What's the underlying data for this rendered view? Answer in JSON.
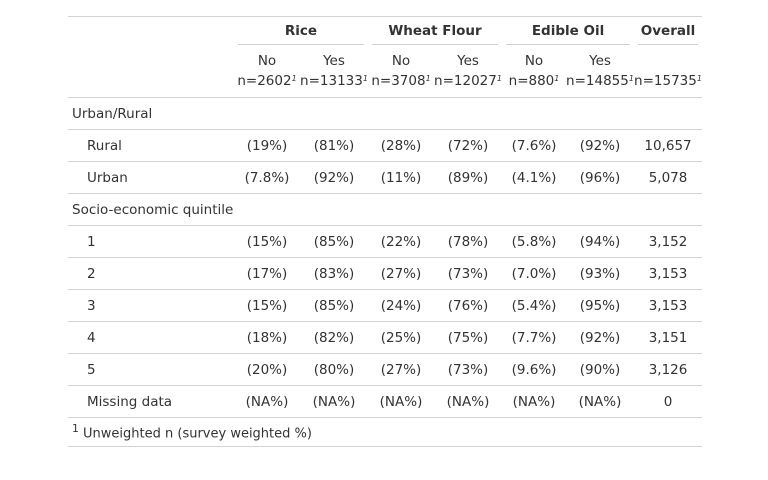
{
  "spanners": {
    "rice": "Rice",
    "wheat": "Wheat Flour",
    "oil": "Edible Oil",
    "overall": "Overall"
  },
  "columns": [
    {
      "label": "No",
      "n": "n=2602"
    },
    {
      "label": "Yes",
      "n": "n=13133"
    },
    {
      "label": "No",
      "n": "n=3708"
    },
    {
      "label": "Yes",
      "n": "n=12027"
    },
    {
      "label": "No",
      "n": "n=880"
    },
    {
      "label": "Yes",
      "n": "n=14855"
    },
    {
      "label": "",
      "n": "n=15735"
    }
  ],
  "footnote_mark": "1",
  "groups": [
    {
      "label": "Urban/Rural",
      "rows": [
        {
          "label": "Rural",
          "values": [
            "(19%)",
            "(81%)",
            "(28%)",
            "(72%)",
            "(7.6%)",
            "(92%)",
            "10,657"
          ]
        },
        {
          "label": "Urban",
          "values": [
            "(7.8%)",
            "(92%)",
            "(11%)",
            "(89%)",
            "(4.1%)",
            "(96%)",
            "5,078"
          ]
        }
      ]
    },
    {
      "label": "Socio-economic quintile",
      "rows": [
        {
          "label": "1",
          "values": [
            "(15%)",
            "(85%)",
            "(22%)",
            "(78%)",
            "(5.8%)",
            "(94%)",
            "3,152"
          ]
        },
        {
          "label": "2",
          "values": [
            "(17%)",
            "(83%)",
            "(27%)",
            "(73%)",
            "(7.0%)",
            "(93%)",
            "3,153"
          ]
        },
        {
          "label": "3",
          "values": [
            "(15%)",
            "(85%)",
            "(24%)",
            "(76%)",
            "(5.4%)",
            "(95%)",
            "3,153"
          ]
        },
        {
          "label": "4",
          "values": [
            "(18%)",
            "(82%)",
            "(25%)",
            "(75%)",
            "(7.7%)",
            "(92%)",
            "3,151"
          ]
        },
        {
          "label": "5",
          "values": [
            "(20%)",
            "(80%)",
            "(27%)",
            "(73%)",
            "(9.6%)",
            "(90%)",
            "3,126"
          ]
        },
        {
          "label": "Missing data",
          "values": [
            "(NA%)",
            "(NA%)",
            "(NA%)",
            "(NA%)",
            "(NA%)",
            "(NA%)",
            "0"
          ]
        }
      ]
    }
  ],
  "footnote": "Unweighted n (survey weighted %)"
}
